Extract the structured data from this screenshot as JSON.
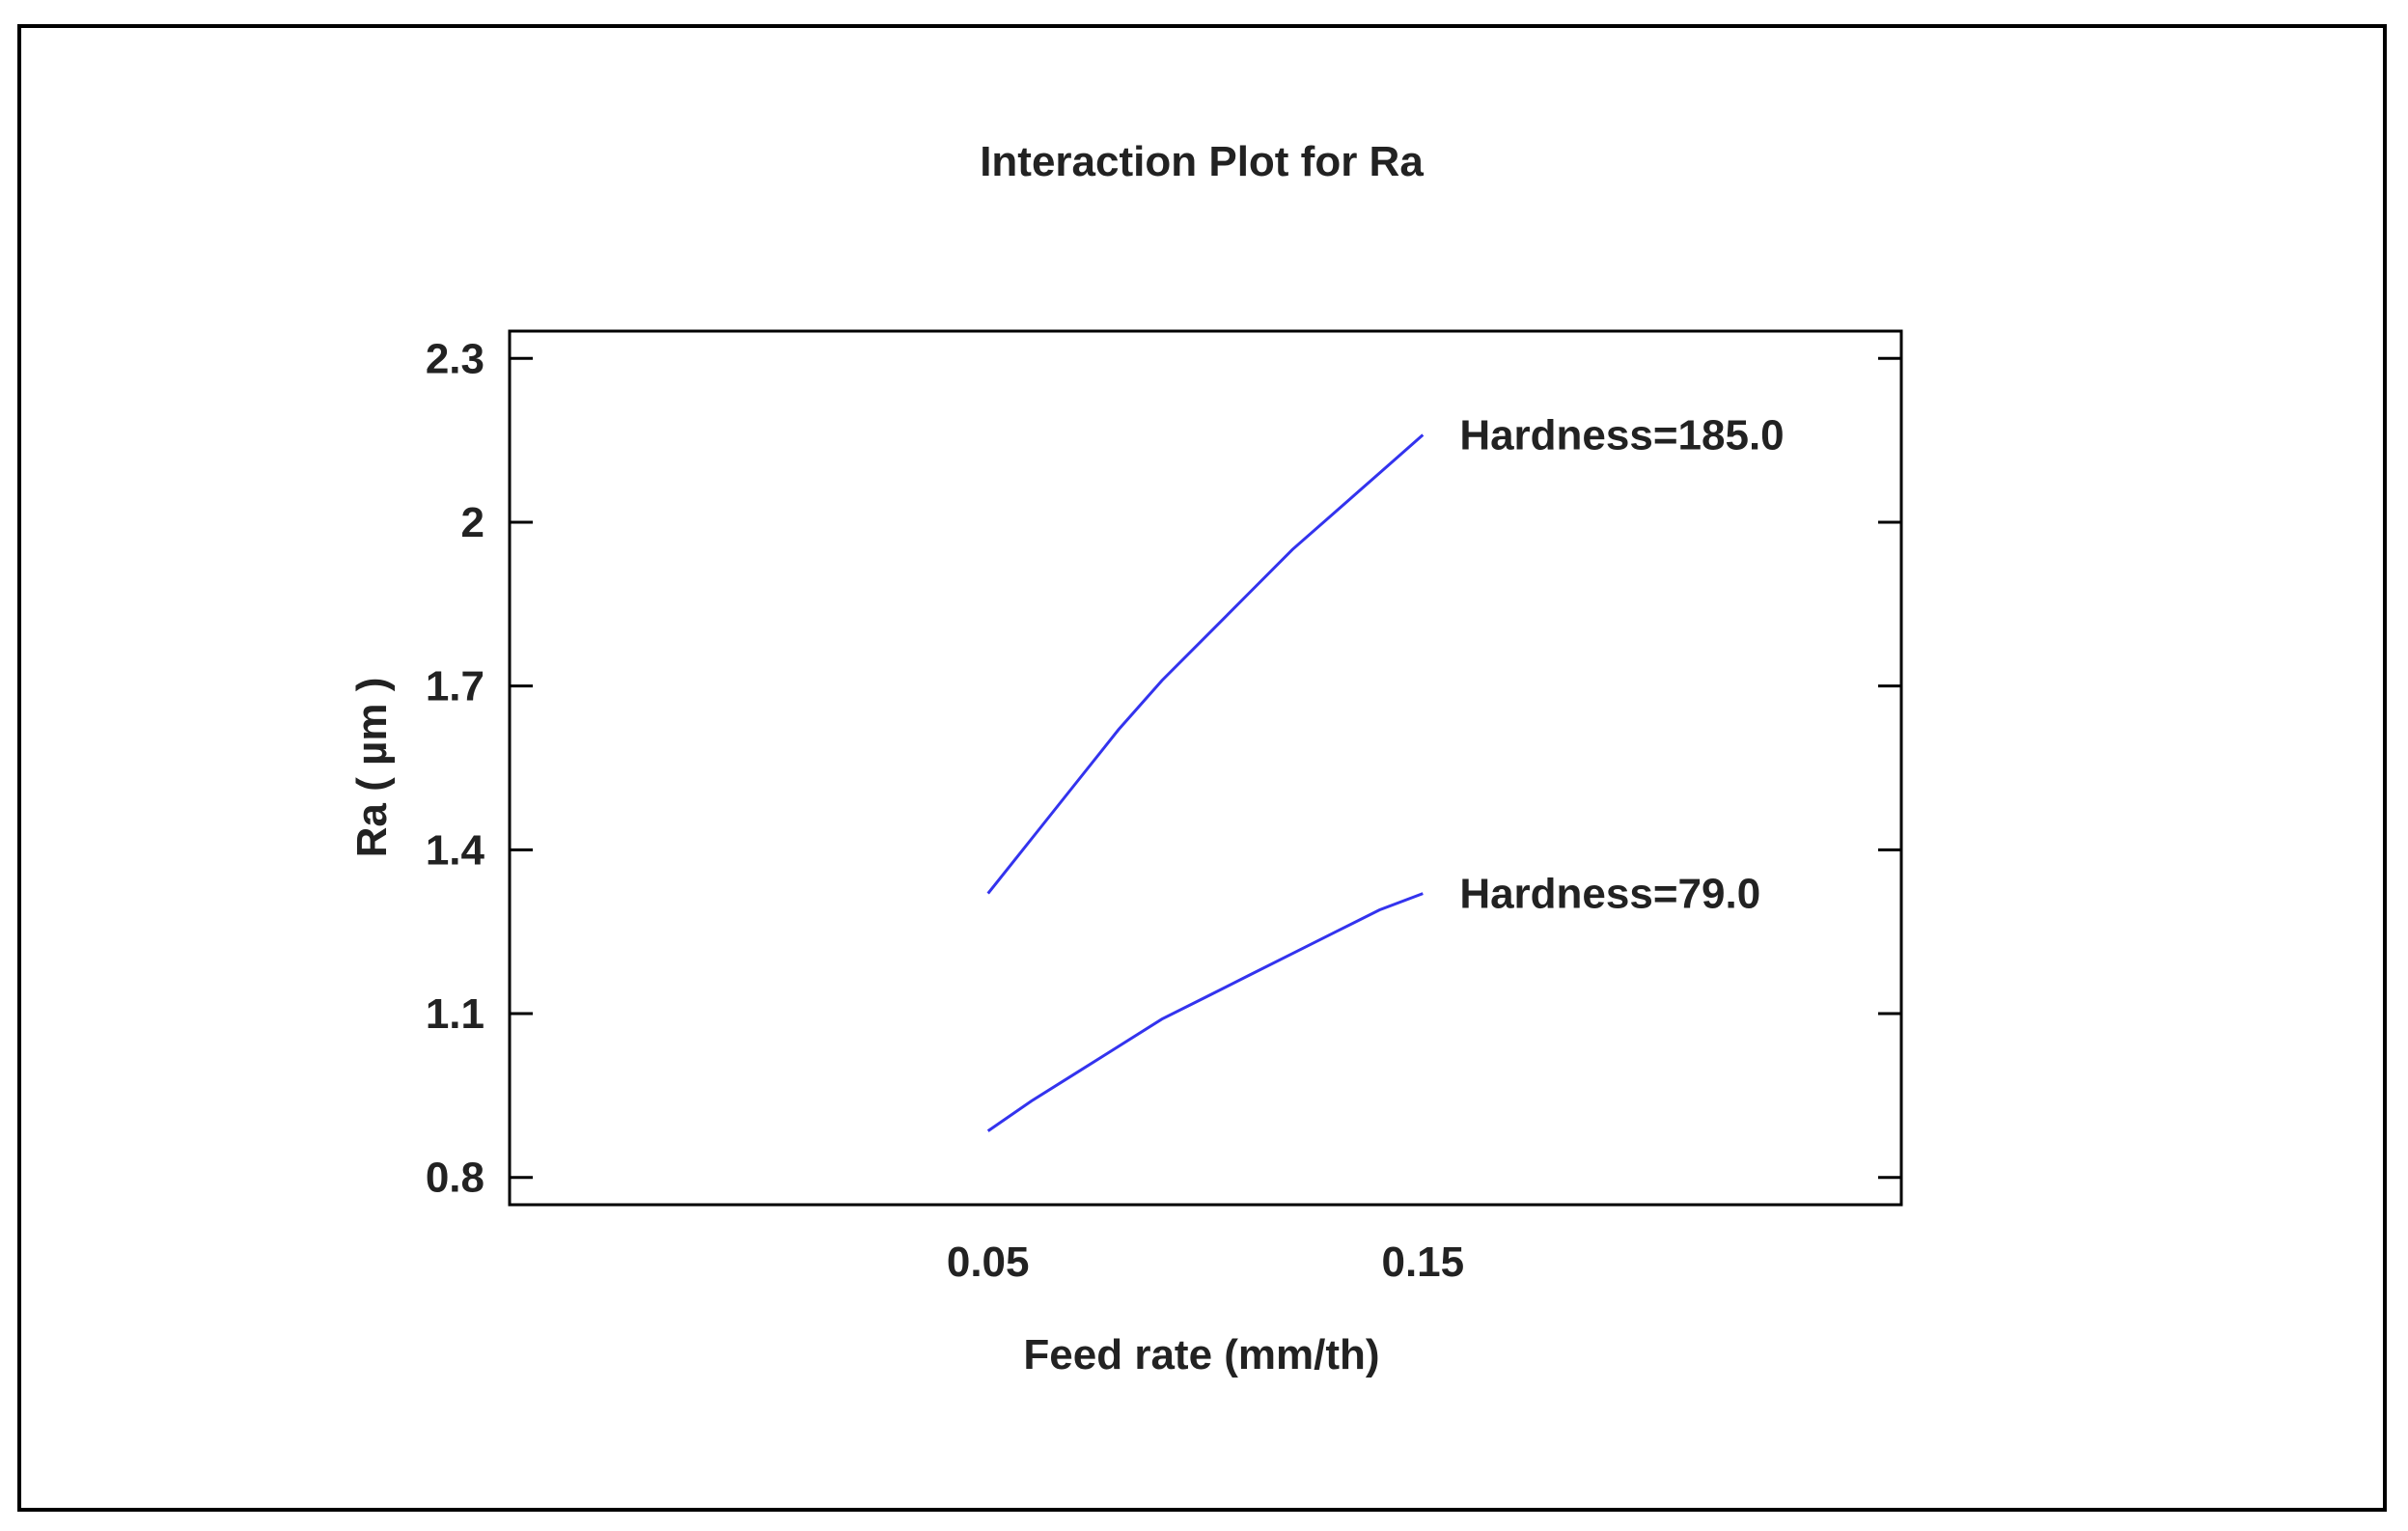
{
  "chart_data": {
    "type": "line",
    "title": "Interaction Plot for Ra",
    "xlabel": "Feed rate (mm/th)",
    "ylabel": "Ra ( µm )",
    "x_ticks": [
      0.05,
      0.15
    ],
    "x_tick_labels": [
      "0.05",
      "0.15"
    ],
    "y_ticks": [
      0.8,
      1.1,
      1.4,
      1.7,
      2.0,
      2.3
    ],
    "y_tick_labels": [
      "0.8",
      "1.1",
      "1.4",
      "1.7",
      "2",
      "2.3"
    ],
    "xlim": [
      -0.06,
      0.26
    ],
    "ylim": [
      0.75,
      2.35
    ],
    "grid": false,
    "series": [
      {
        "name": "Hardness=185.0",
        "label": "Hardness=185.0",
        "color": "#3333ee",
        "x": [
          0.05,
          0.06,
          0.07,
          0.08,
          0.09,
          0.1,
          0.11,
          0.12,
          0.13,
          0.14,
          0.15
        ],
        "y": [
          1.32,
          1.42,
          1.52,
          1.62,
          1.71,
          1.79,
          1.87,
          1.95,
          2.02,
          2.09,
          2.16
        ]
      },
      {
        "name": "Hardness=79.0",
        "label": "Hardness=79.0",
        "color": "#3333ee",
        "x": [
          0.05,
          0.06,
          0.07,
          0.08,
          0.09,
          0.1,
          0.11,
          0.12,
          0.13,
          0.14,
          0.15
        ],
        "y": [
          0.885,
          0.94,
          0.99,
          1.04,
          1.09,
          1.13,
          1.17,
          1.21,
          1.25,
          1.29,
          1.32
        ]
      }
    ]
  }
}
